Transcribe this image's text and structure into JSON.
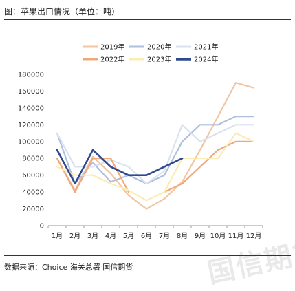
{
  "header": {
    "title": "图：苹果出口情况（单位：吨）"
  },
  "footer": {
    "source": "数据来源：Choice   海关总署   国信期货"
  },
  "watermark": {
    "text": "国信期货"
  },
  "chart_data": {
    "type": "line",
    "categories": [
      "1月",
      "2月",
      "3月",
      "4月",
      "5月",
      "6月",
      "7月",
      "8月",
      "9月",
      "10月",
      "11月",
      "12月"
    ],
    "ylim": [
      0,
      180000
    ],
    "yticks": [
      0,
      20000,
      40000,
      60000,
      80000,
      100000,
      120000,
      140000,
      160000,
      180000
    ],
    "grid": false,
    "legend_position": "top",
    "series": [
      {
        "name": "2019年",
        "color": "#f2c5a0",
        "width": 2.2,
        "values": [
          80000,
          42000,
          82000,
          62000,
          36000,
          20000,
          32000,
          52000,
          90000,
          130000,
          170000,
          164000
        ]
      },
      {
        "name": "2020年",
        "color": "#aebfdf",
        "width": 2.2,
        "values": [
          110000,
          50000,
          75000,
          52000,
          60000,
          50000,
          60000,
          100000,
          120000,
          120000,
          130000,
          130000
        ]
      },
      {
        "name": "2021年",
        "color": "#d8e2f0",
        "width": 2.2,
        "values": [
          110000,
          70000,
          70000,
          78000,
          70000,
          50000,
          65000,
          120000,
          100000,
          110000,
          120000,
          120000
        ]
      },
      {
        "name": "2022年",
        "color": "#efa879",
        "width": 2.2,
        "values": [
          80000,
          40000,
          80000,
          80000,
          40000,
          null,
          40000,
          50000,
          70000,
          90000,
          100000,
          100000
        ]
      },
      {
        "name": "2023年",
        "color": "#fbebb4",
        "width": 2.2,
        "values": [
          70000,
          60000,
          60000,
          50000,
          42000,
          30000,
          40000,
          80000,
          80000,
          80000,
          110000,
          100000
        ]
      },
      {
        "name": "2024年",
        "color": "#2e4a8c",
        "width": 2.6,
        "values": [
          90000,
          50000,
          90000,
          70000,
          60000,
          60000,
          70000,
          80000,
          null,
          null,
          null,
          null
        ]
      }
    ]
  }
}
